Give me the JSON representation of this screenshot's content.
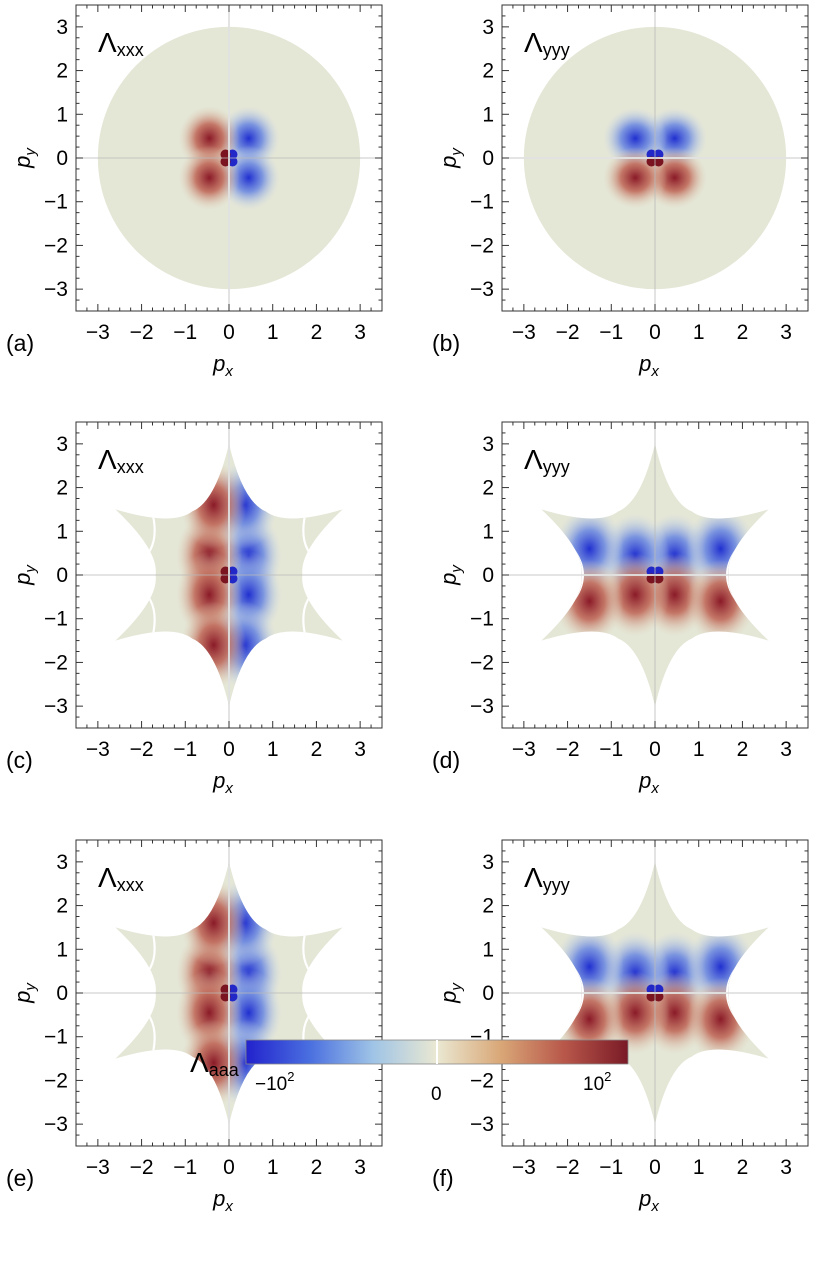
{
  "chart_data": [
    {
      "type": "heatmap",
      "panel_label": "(a)",
      "title": "Λ",
      "title_sub": "xxx",
      "xlabel": "p",
      "xlabel_sub": "x",
      "ylabel": "p",
      "ylabel_sub": "y",
      "xlim": [
        -3.5,
        3.5
      ],
      "ylim": [
        -3.5,
        3.5
      ],
      "xticks": [
        -3,
        -2,
        -1,
        0,
        1,
        2,
        3
      ],
      "yticks": [
        -3,
        -2,
        -1,
        0,
        1,
        2,
        3
      ],
      "tick_labels": [
        "−3",
        "−2",
        "−1",
        "0",
        "1",
        "2",
        "3"
      ],
      "domain_shape": "circle",
      "domain_radius": 3,
      "component": "xxx",
      "sign_pattern": "negative for px>0, positive for px<0",
      "zero_contours": false
    },
    {
      "type": "heatmap",
      "panel_label": "(b)",
      "title": "Λ",
      "title_sub": "yyy",
      "xlabel": "p",
      "xlabel_sub": "x",
      "ylabel": "p",
      "ylabel_sub": "y",
      "xlim": [
        -3.5,
        3.5
      ],
      "ylim": [
        -3.5,
        3.5
      ],
      "xticks": [
        -3,
        -2,
        -1,
        0,
        1,
        2,
        3
      ],
      "yticks": [
        -3,
        -2,
        -1,
        0,
        1,
        2,
        3
      ],
      "tick_labels": [
        "−3",
        "−2",
        "−1",
        "0",
        "1",
        "2",
        "3"
      ],
      "domain_shape": "circle",
      "domain_radius": 3,
      "component": "yyy",
      "sign_pattern": "negative for py>0, positive for py<0",
      "zero_contours": false
    },
    {
      "type": "heatmap",
      "panel_label": "(c)",
      "title": "Λ",
      "title_sub": "xxx",
      "xlabel": "p",
      "xlabel_sub": "x",
      "ylabel": "p",
      "ylabel_sub": "y",
      "xlim": [
        -3.5,
        3.5
      ],
      "ylim": [
        -3.5,
        3.5
      ],
      "xticks": [
        -3,
        -2,
        -1,
        0,
        1,
        2,
        3
      ],
      "yticks": [
        -3,
        -2,
        -1,
        0,
        1,
        2,
        3
      ],
      "tick_labels": [
        "−3",
        "−2",
        "−1",
        "0",
        "1",
        "2",
        "3"
      ],
      "domain_shape": "six-pointed star",
      "tip_radius": 3,
      "tip_angles_deg": [
        30,
        90,
        150,
        210,
        270,
        330
      ],
      "component": "xxx",
      "sign_pattern": "negative for px>0, positive for px<0",
      "zero_contours": true
    },
    {
      "type": "heatmap",
      "panel_label": "(d)",
      "title": "Λ",
      "title_sub": "yyy",
      "xlabel": "p",
      "xlabel_sub": "x",
      "ylabel": "p",
      "ylabel_sub": "y",
      "xlim": [
        -3.5,
        3.5
      ],
      "ylim": [
        -3.5,
        3.5
      ],
      "xticks": [
        -3,
        -2,
        -1,
        0,
        1,
        2,
        3
      ],
      "yticks": [
        -3,
        -2,
        -1,
        0,
        1,
        2,
        3
      ],
      "tick_labels": [
        "−3",
        "−2",
        "−1",
        "0",
        "1",
        "2",
        "3"
      ],
      "domain_shape": "six-pointed star",
      "tip_radius": 3,
      "tip_angles_deg": [
        30,
        90,
        150,
        210,
        270,
        330
      ],
      "component": "yyy",
      "sign_pattern": "negative for py>0, positive for py<0",
      "zero_contours": true
    },
    {
      "type": "heatmap",
      "panel_label": "(e)",
      "title": "Λ",
      "title_sub": "xxx",
      "xlabel": "p",
      "xlabel_sub": "x",
      "ylabel": "p",
      "ylabel_sub": "y",
      "xlim": [
        -3.5,
        3.5
      ],
      "ylim": [
        -3.5,
        3.5
      ],
      "xticks": [
        -3,
        -2,
        -1,
        0,
        1,
        2,
        3
      ],
      "yticks": [
        -3,
        -2,
        -1,
        0,
        1,
        2,
        3
      ],
      "tick_labels": [
        "−3",
        "−2",
        "−1",
        "0",
        "1",
        "2",
        "3"
      ],
      "domain_shape": "six-pointed star",
      "tip_radius": 3,
      "tip_angles_deg": [
        30,
        90,
        150,
        210,
        270,
        330
      ],
      "component": "xxx",
      "sign_pattern": "positive for px<0, negative for px>0",
      "zero_contours": true
    },
    {
      "type": "heatmap",
      "panel_label": "(f)",
      "title": "Λ",
      "title_sub": "yyy",
      "xlabel": "p",
      "xlabel_sub": "x",
      "ylabel": "p",
      "ylabel_sub": "y",
      "xlim": [
        -3.5,
        3.5
      ],
      "ylim": [
        -3.5,
        3.5
      ],
      "xticks": [
        -3,
        -2,
        -1,
        0,
        1,
        2,
        3
      ],
      "yticks": [
        -3,
        -2,
        -1,
        0,
        1,
        2,
        3
      ],
      "tick_labels": [
        "−3",
        "−2",
        "−1",
        "0",
        "1",
        "2",
        "3"
      ],
      "domain_shape": "six-pointed star",
      "tip_radius": 3,
      "tip_angles_deg": [
        30,
        90,
        150,
        210,
        270,
        330
      ],
      "component": "yyy",
      "sign_pattern": "negative for py>0, positive for py<0",
      "zero_contours": true
    }
  ],
  "colorbar": {
    "title": "Λ",
    "title_sub": "aaa",
    "scale": "symmetric log",
    "tick_labels": [
      {
        "value": -100,
        "base": "−10",
        "exp": "2"
      },
      {
        "value": 0,
        "base": "0",
        "exp": ""
      },
      {
        "value": 100,
        "base": "10",
        "exp": "2"
      }
    ],
    "colors": [
      "#2222cc",
      "#4a6fe0",
      "#9fc4e6",
      "#eae8d2",
      "#d9a777",
      "#b8574a",
      "#7a1a26"
    ]
  }
}
